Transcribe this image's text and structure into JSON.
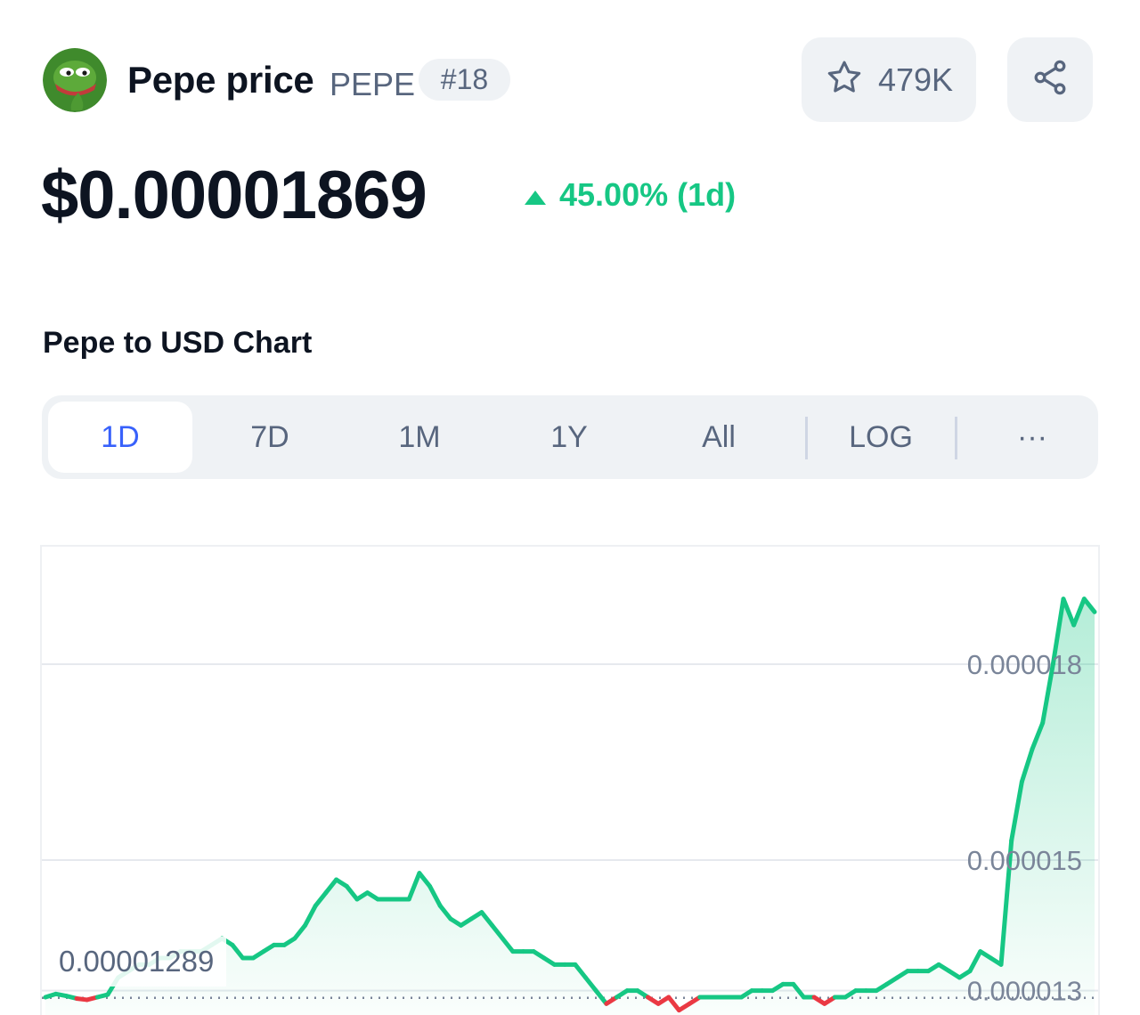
{
  "header": {
    "name": "Pepe price",
    "symbol": "PEPE",
    "rank": "#18",
    "watchlist_count": "479K"
  },
  "price": {
    "value": "$0.00001869",
    "change": "45.00% (1d)",
    "change_direction": "up"
  },
  "chart_section": {
    "title": "Pepe to USD Chart",
    "ranges": [
      "1D",
      "7D",
      "1M",
      "1Y",
      "All"
    ],
    "active_range": "1D",
    "log_label": "LOG",
    "more_label": "···"
  },
  "colors": {
    "up": "#16c784",
    "down": "#ea3943",
    "accent": "#3861fb",
    "muted_text": "#58667e",
    "button_bg": "#eff2f5"
  },
  "icons": {
    "watch": "star-icon",
    "share": "share-icon",
    "change": "triangle-up-icon"
  },
  "chart_data": {
    "type": "area",
    "open_price_label": "0.00001289",
    "open_price": 1.289e-05,
    "y_ticks": [
      "0.000018",
      "0.000015",
      "0.000013"
    ],
    "ylim": [
      1.26e-05,
      1.98e-05
    ],
    "xlabel": "",
    "ylabel": "",
    "series": [
      {
        "values": [
          1.29e-05,
          1.295e-05,
          1.292e-05,
          1.288e-05,
          1.286e-05,
          1.29e-05,
          1.294e-05,
          1.32e-05,
          1.33e-05,
          1.34e-05,
          1.34e-05,
          1.35e-05,
          1.35e-05,
          1.36e-05,
          1.36e-05,
          1.36e-05,
          1.37e-05,
          1.38e-05,
          1.37e-05,
          1.35e-05,
          1.35e-05,
          1.36e-05,
          1.37e-05,
          1.37e-05,
          1.38e-05,
          1.4e-05,
          1.43e-05,
          1.45e-05,
          1.47e-05,
          1.46e-05,
          1.44e-05,
          1.45e-05,
          1.44e-05,
          1.44e-05,
          1.44e-05,
          1.44e-05,
          1.48e-05,
          1.46e-05,
          1.43e-05,
          1.41e-05,
          1.4e-05,
          1.41e-05,
          1.42e-05,
          1.4e-05,
          1.38e-05,
          1.36e-05,
          1.36e-05,
          1.36e-05,
          1.35e-05,
          1.34e-05,
          1.34e-05,
          1.34e-05,
          1.32e-05,
          1.3e-05,
          1.28e-05,
          1.29e-05,
          1.3e-05,
          1.3e-05,
          1.29e-05,
          1.28e-05,
          1.29e-05,
          1.27e-05,
          1.28e-05,
          1.29e-05,
          1.29e-05,
          1.29e-05,
          1.29e-05,
          1.29e-05,
          1.3e-05,
          1.3e-05,
          1.3e-05,
          1.31e-05,
          1.31e-05,
          1.29e-05,
          1.29e-05,
          1.28e-05,
          1.29e-05,
          1.29e-05,
          1.3e-05,
          1.3e-05,
          1.3e-05,
          1.31e-05,
          1.32e-05,
          1.33e-05,
          1.33e-05,
          1.33e-05,
          1.34e-05,
          1.33e-05,
          1.32e-05,
          1.33e-05,
          1.36e-05,
          1.35e-05,
          1.34e-05,
          1.53e-05,
          1.62e-05,
          1.67e-05,
          1.71e-05,
          1.8e-05,
          1.9e-05,
          1.86e-05,
          1.9e-05,
          1.88e-05
        ]
      }
    ]
  }
}
